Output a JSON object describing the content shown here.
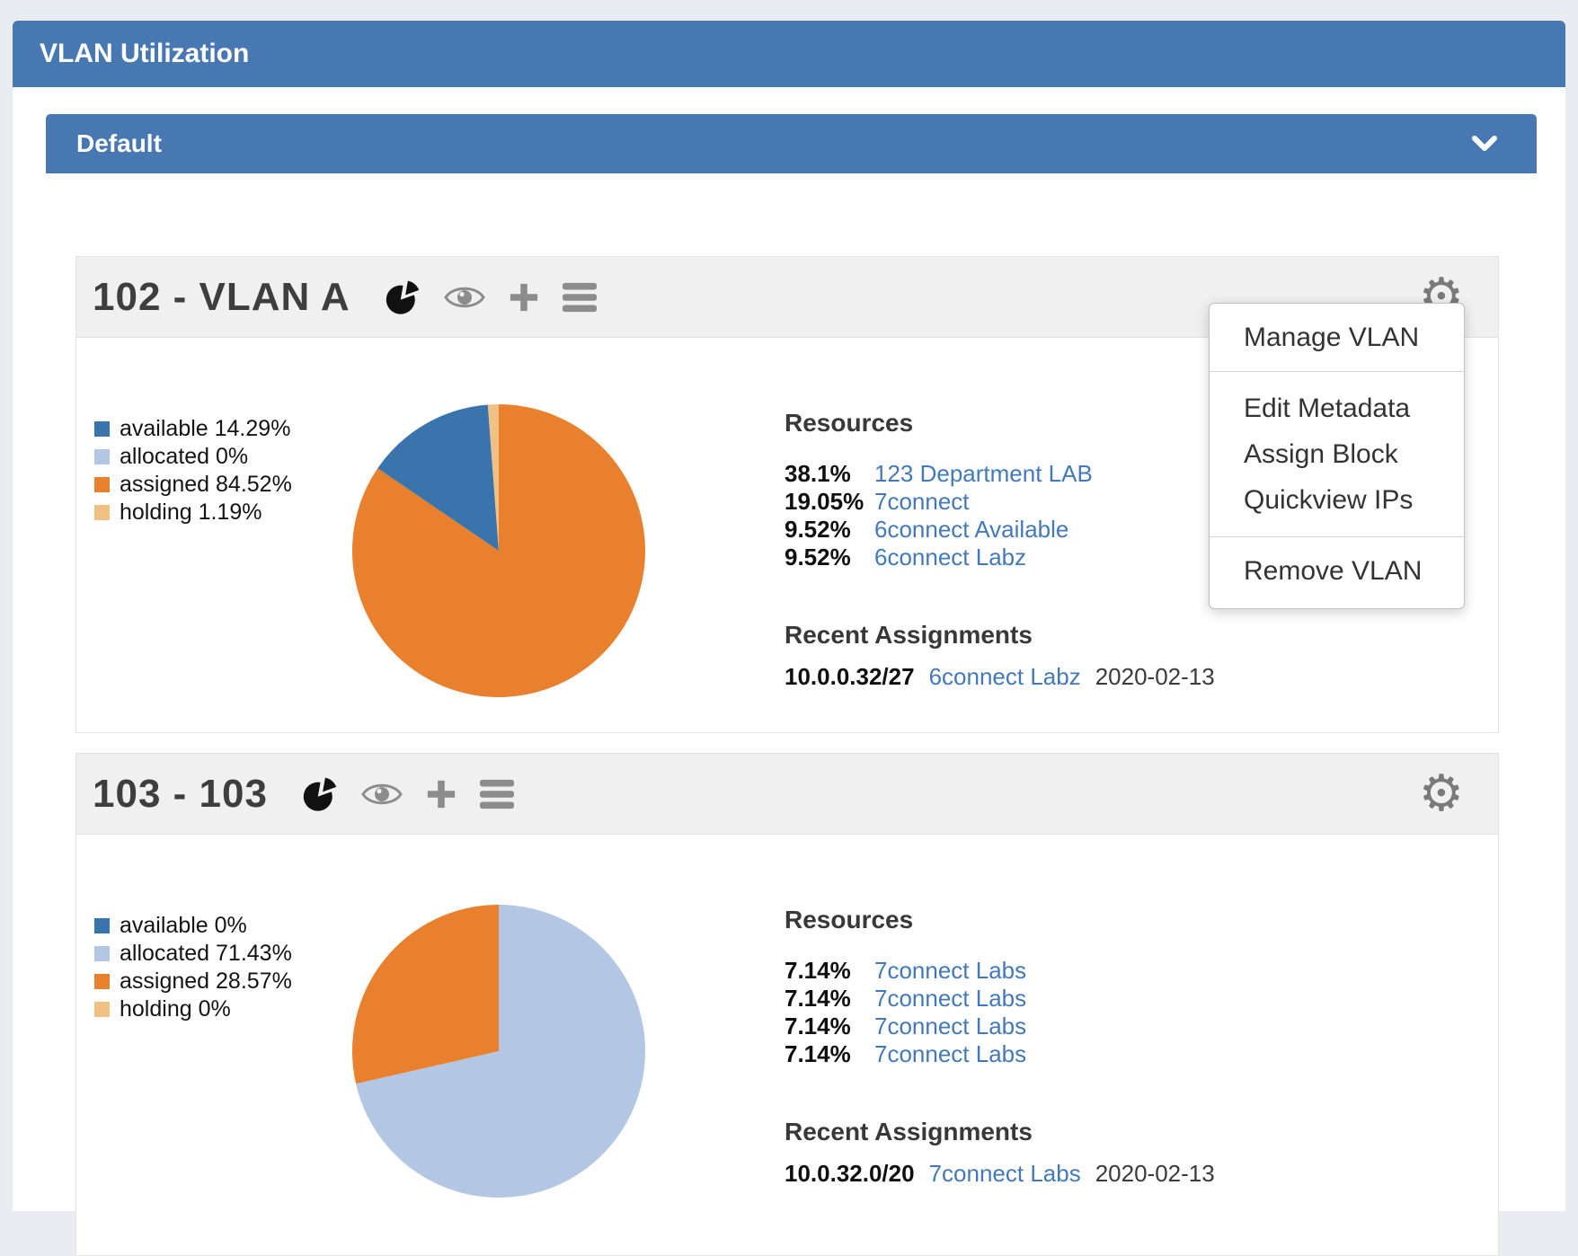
{
  "colors": {
    "header_blue": "#4878b2",
    "link_blue": "#4379ba",
    "available": "#3a74ac",
    "allocated": "#b3c6e4",
    "assigned": "#e8802d",
    "holding": "#f0c183"
  },
  "page": {
    "title": "VLAN Utilization"
  },
  "group": {
    "title": "Default"
  },
  "cards": [
    {
      "title": "102 - VLAN A",
      "legend": [
        {
          "name": "available",
          "label": "available 14.29%"
        },
        {
          "name": "allocated",
          "label": "allocated 0%"
        },
        {
          "name": "assigned",
          "label": "assigned 84.52%"
        },
        {
          "name": "holding",
          "label": "holding 1.19%"
        }
      ],
      "resources": {
        "heading": "Resources",
        "rows": [
          {
            "pct": "38.1%",
            "link": "123 Department LAB"
          },
          {
            "pct": "19.05%",
            "link": "7connect"
          },
          {
            "pct": "9.52%",
            "link": "6connect Available"
          },
          {
            "pct": "9.52%",
            "link": "6connect Labz"
          }
        ]
      },
      "recent": {
        "heading": "Recent Assignments",
        "rows": [
          {
            "cidr": "10.0.0.32/27",
            "link": "6connect Labz",
            "date": "2020-02-13"
          }
        ]
      }
    },
    {
      "title": "103 - 103",
      "legend": [
        {
          "name": "available",
          "label": "available 0%"
        },
        {
          "name": "allocated",
          "label": "allocated 71.43%"
        },
        {
          "name": "assigned",
          "label": "assigned 28.57%"
        },
        {
          "name": "holding",
          "label": "holding 0%"
        }
      ],
      "resources": {
        "heading": "Resources",
        "rows": [
          {
            "pct": "7.14%",
            "link": "7connect Labs"
          },
          {
            "pct": "7.14%",
            "link": "7connect Labs"
          },
          {
            "pct": "7.14%",
            "link": "7connect Labs"
          },
          {
            "pct": "7.14%",
            "link": "7connect Labs"
          }
        ]
      },
      "recent": {
        "heading": "Recent Assignments",
        "rows": [
          {
            "cidr": "10.0.32.0/20",
            "link": "7connect Labs",
            "date": "2020-02-13"
          }
        ]
      }
    }
  ],
  "menu": {
    "groups": [
      [
        "Manage VLAN"
      ],
      [
        "Edit Metadata",
        "Assign Block",
        "Quickview IPs"
      ],
      [
        "Remove VLAN"
      ]
    ]
  },
  "chart_data": [
    {
      "type": "pie",
      "title": "102 - VLAN A utilization",
      "legend_position": "left",
      "categories": [
        "available",
        "allocated",
        "assigned",
        "holding"
      ],
      "values": [
        14.29,
        0,
        84.52,
        1.19
      ],
      "slices": [
        {
          "label": "assigned",
          "value": 84.52,
          "color_key": "assigned"
        },
        {
          "label": "available",
          "value": 14.29,
          "color_key": "available"
        },
        {
          "label": "holding",
          "value": 1.19,
          "color_key": "holding"
        },
        {
          "label": "allocated",
          "value": 0,
          "color_key": "allocated"
        }
      ]
    },
    {
      "type": "pie",
      "title": "103 - 103 utilization",
      "legend_position": "left",
      "categories": [
        "available",
        "allocated",
        "assigned",
        "holding"
      ],
      "values": [
        0,
        71.43,
        28.57,
        0
      ],
      "slices": [
        {
          "label": "allocated",
          "value": 71.43,
          "color_key": "allocated"
        },
        {
          "label": "assigned",
          "value": 28.57,
          "color_key": "assigned"
        },
        {
          "label": "available",
          "value": 0,
          "color_key": "available"
        },
        {
          "label": "holding",
          "value": 0,
          "color_key": "holding"
        }
      ]
    }
  ]
}
